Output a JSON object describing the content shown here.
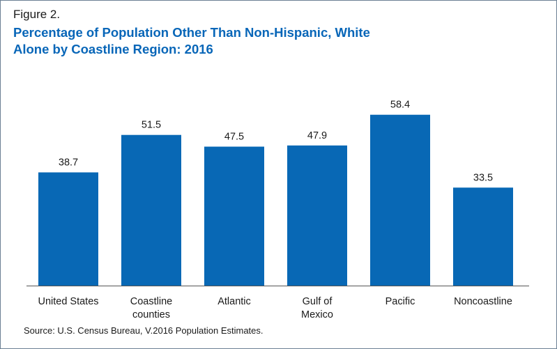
{
  "figure_label": "Figure 2.",
  "source": "Source: U.S. Census Bureau, V.2016 Population Estimates.",
  "colors": {
    "bar": "#0868b5",
    "title": "#0866b8",
    "axis": "#555555"
  },
  "chart_data": {
    "type": "bar",
    "title": "Percentage of Population Other Than Non-Hispanic, White Alone by Coastline Region: 2016",
    "title_lines": [
      "Percentage of Population Other Than Non-Hispanic, White",
      "Alone by Coastline Region: 2016"
    ],
    "categories": [
      "United States",
      "Coastline counties",
      "Atlantic",
      "Gulf of Mexico",
      "Pacific",
      "Noncoastline"
    ],
    "category_lines": [
      [
        "United States"
      ],
      [
        "Coastline",
        "counties"
      ],
      [
        "Atlantic"
      ],
      [
        "Gulf of",
        "Mexico"
      ],
      [
        "Pacific"
      ],
      [
        "Noncoastline"
      ]
    ],
    "values": [
      38.7,
      51.5,
      47.5,
      47.9,
      58.4,
      33.5
    ],
    "value_labels": [
      "38.7",
      "51.5",
      "47.5",
      "47.9",
      "58.4",
      "33.5"
    ],
    "xlabel": "",
    "ylabel": "",
    "ylim": [
      0,
      68
    ],
    "grid": false,
    "legend": "none"
  }
}
